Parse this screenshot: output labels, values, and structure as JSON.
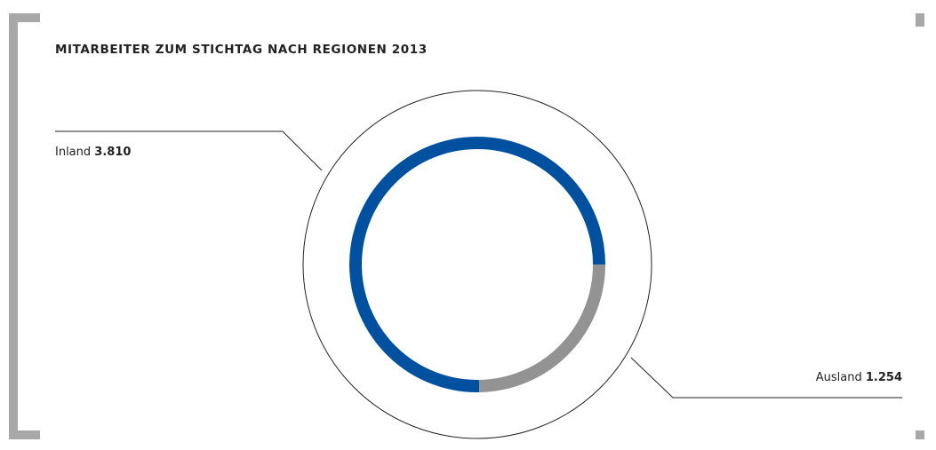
{
  "chart_data": {
    "type": "donut",
    "title": "MITARBEITER ZUM STICHTAG NACH REGIONEN 2013",
    "categories": [
      "Inland",
      "Ausland"
    ],
    "values": [
      3810,
      1254
    ],
    "value_labels": [
      "3.810",
      "1.254"
    ],
    "colors": [
      "#0050a0",
      "#939393"
    ]
  }
}
